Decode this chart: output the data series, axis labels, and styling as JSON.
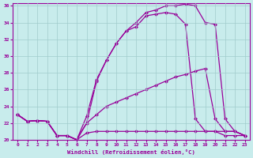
{
  "xlabel": "Windchill (Refroidissement éolien,°C)",
  "bg_color": "#c8ecec",
  "line_color": "#990099",
  "grid_color": "#a0cccc",
  "xlim": [
    -0.5,
    23.5
  ],
  "ylim": [
    20,
    36
  ],
  "xticks": [
    0,
    1,
    2,
    3,
    4,
    5,
    6,
    7,
    8,
    9,
    10,
    11,
    12,
    13,
    14,
    15,
    16,
    17,
    18,
    19,
    20,
    21,
    22,
    23
  ],
  "yticks": [
    20,
    22,
    24,
    26,
    28,
    30,
    32,
    34,
    36
  ],
  "curve1_x": [
    0,
    1,
    2,
    3,
    4,
    5,
    6,
    7,
    8,
    9,
    10,
    11,
    12,
    13,
    14,
    15,
    16,
    17,
    18,
    19,
    20,
    21,
    22,
    23
  ],
  "curve1_y": [
    23.0,
    22.2,
    22.3,
    22.2,
    20.5,
    20.5,
    20.0,
    20.8,
    21.0,
    21.0,
    21.0,
    21.0,
    21.0,
    21.0,
    21.0,
    21.0,
    21.0,
    21.0,
    21.0,
    21.0,
    21.0,
    21.0,
    21.0,
    20.5
  ],
  "curve2_x": [
    0,
    1,
    2,
    3,
    4,
    5,
    6,
    7,
    8,
    9,
    10,
    11,
    12,
    13,
    14,
    15,
    16,
    17,
    18,
    19,
    20,
    21,
    22,
    23
  ],
  "curve2_y": [
    23.0,
    22.2,
    22.3,
    22.2,
    20.5,
    20.5,
    20.0,
    22.0,
    23.0,
    24.0,
    24.5,
    25.0,
    25.5,
    26.0,
    26.5,
    27.0,
    27.5,
    27.8,
    28.2,
    28.5,
    22.5,
    21.0,
    21.0,
    20.5
  ],
  "curve3_x": [
    0,
    1,
    2,
    3,
    4,
    5,
    6,
    7,
    8,
    9,
    10,
    11,
    12,
    13,
    14,
    15,
    16,
    17,
    18,
    19,
    20,
    21,
    22,
    23
  ],
  "curve3_y": [
    23.0,
    22.2,
    22.3,
    22.2,
    20.5,
    20.5,
    20.0,
    22.8,
    27.2,
    29.5,
    31.5,
    33.0,
    33.5,
    34.8,
    35.0,
    35.2,
    35.0,
    33.8,
    22.5,
    21.0,
    21.0,
    20.5,
    20.5,
    20.5
  ],
  "curve4_x": [
    0,
    1,
    2,
    3,
    4,
    5,
    6,
    7,
    8,
    9,
    10,
    11,
    12,
    13,
    14,
    15,
    16,
    17,
    18,
    19,
    20,
    21,
    22,
    23
  ],
  "curve4_y": [
    23.0,
    22.2,
    22.3,
    22.2,
    20.5,
    20.5,
    20.0,
    22.0,
    27.0,
    29.5,
    31.5,
    33.0,
    34.0,
    35.2,
    35.5,
    36.0,
    36.0,
    36.2,
    36.0,
    34.0,
    33.8,
    22.5,
    21.0,
    20.5
  ]
}
